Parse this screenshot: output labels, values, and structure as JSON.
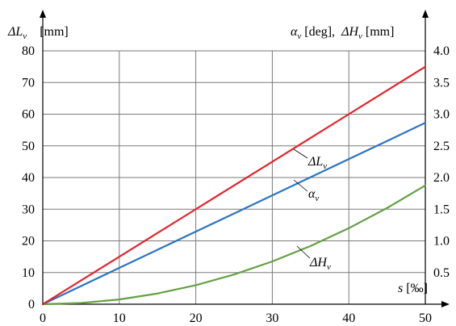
{
  "chart_data": {
    "type": "line",
    "x": [
      0,
      5,
      10,
      15,
      20,
      25,
      30,
      35,
      40,
      45,
      50
    ],
    "series": [
      {
        "name": "ΔL",
        "name_sub": "v",
        "axis": "left",
        "color": "#e3242b",
        "values": [
          0,
          7.5,
          15,
          22.5,
          30,
          37.5,
          45,
          52.5,
          60,
          67.5,
          75
        ]
      },
      {
        "name": "α",
        "name_sub": "v",
        "axis": "right",
        "color": "#2b73c2",
        "values": [
          0,
          0.287,
          0.573,
          0.86,
          1.146,
          1.432,
          1.718,
          2.005,
          2.291,
          2.577,
          2.865
        ]
      },
      {
        "name": "ΔH",
        "name_sub": "v",
        "axis": "right",
        "color": "#64a043",
        "values": [
          0,
          0.019,
          0.075,
          0.169,
          0.3,
          0.469,
          0.675,
          0.919,
          1.2,
          1.519,
          1.875
        ]
      }
    ],
    "xlim": [
      0,
      50
    ],
    "xticks": [
      0,
      10,
      20,
      30,
      40,
      50
    ],
    "ylim_left": [
      0,
      80
    ],
    "yticks_left": [
      0,
      10,
      20,
      30,
      40,
      50,
      60,
      70,
      80
    ],
    "ylim_right": [
      0,
      4.0
    ],
    "yticks_right": [
      "0.5",
      "1.0",
      "1.5",
      "2.0",
      "2.5",
      "3.0",
      "3.5",
      "4.0"
    ],
    "left_axis_label": {
      "symbol": "ΔL",
      "sub": "v",
      "unit": "[mm]"
    },
    "right_axis_label": {
      "a_symbol": "α",
      "a_sub": "v",
      "a_unit": "[deg],",
      "h_symbol": "ΔH",
      "h_sub": "v",
      "h_unit": "[mm]"
    },
    "x_axis_label": {
      "symbol": "s",
      "unit": "[‰]"
    },
    "grid": true
  }
}
